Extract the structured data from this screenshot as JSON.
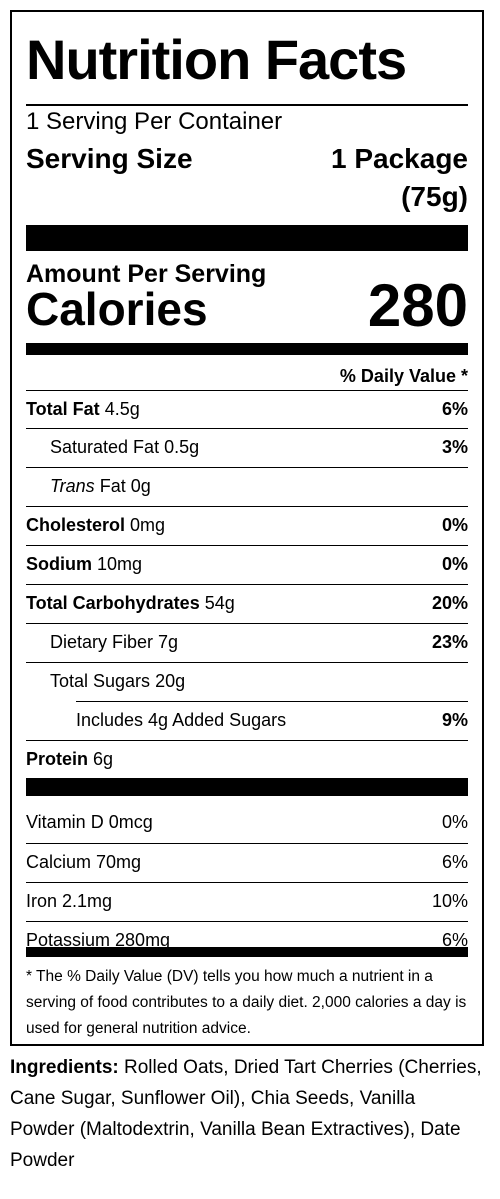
{
  "title": "Nutrition Facts",
  "servings_per_container": "1 Serving Per Container",
  "serving_size": {
    "label": "Serving Size",
    "value": "1 Package",
    "grams": "(75g)"
  },
  "amount_per_serving": "Amount Per Serving",
  "calories": {
    "label": "Calories",
    "value": "280"
  },
  "daily_value_header": "% Daily Value *",
  "nutrients": [
    {
      "name": "Total Fat",
      "amount": "4.5g",
      "dv": "6%"
    },
    {
      "name": "Saturated Fat",
      "amount": "0.5g",
      "dv": "3%"
    },
    {
      "name": "Trans",
      "amount": "Fat 0g",
      "dv": ""
    },
    {
      "name": "Cholesterol",
      "amount": "0mg",
      "dv": "0%"
    },
    {
      "name": "Sodium",
      "amount": "10mg",
      "dv": "0%"
    },
    {
      "name": "Total Carbohydrates",
      "amount": "54g",
      "dv": "20%"
    },
    {
      "name": "Dietary Fiber",
      "amount": "7g",
      "dv": "23%"
    },
    {
      "name": "Total Sugars",
      "amount": "20g",
      "dv": ""
    },
    {
      "name": "Includes 4g Added Sugars",
      "amount": "",
      "dv": "9%"
    },
    {
      "name": "Protein",
      "amount": "6g",
      "dv": ""
    }
  ],
  "vitamins": [
    {
      "label": "Vitamin D 0mcg",
      "dv": "0%"
    },
    {
      "label": "Calcium 70mg",
      "dv": "6%"
    },
    {
      "label": "Iron 2.1mg",
      "dv": "10%"
    },
    {
      "label": "Potassium 280mg",
      "dv": "6%"
    }
  ],
  "footnote": "* The % Daily Value (DV) tells you how much a nutrient in a serving of food contributes to a daily diet. 2,000 calories a day is used for general nutrition advice.",
  "ingredients": {
    "label": "Ingredients:",
    "text": "Rolled Oats, Dried Tart Cherries (Cherries, Cane Sugar, Sunflower Oil), Chia Seeds, Vanilla Powder (Maltodextrin, Vanilla Bean Extractives), Date Powder"
  }
}
